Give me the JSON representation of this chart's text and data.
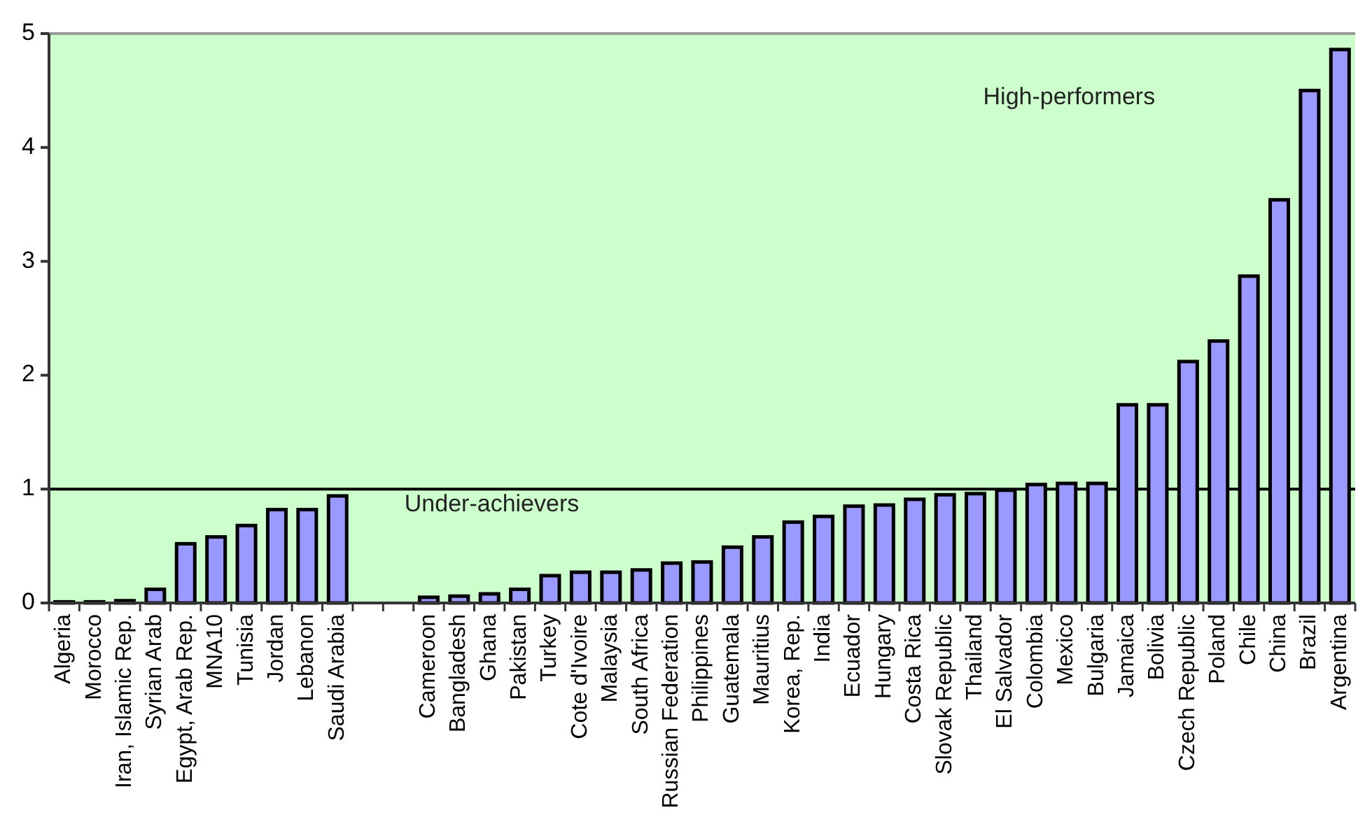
{
  "chart_data": {
    "type": "bar",
    "categories": [
      "Algeria",
      "Morocco",
      "Iran, Islamic Rep.",
      "Syrian Arab",
      "Egypt, Arab Rep.",
      "MNA10",
      "Tunisia",
      "Jordan",
      "Lebanon",
      "Saudi Arabia",
      null,
      null,
      "Cameroon",
      "Bangladesh",
      "Ghana",
      "Pakistan",
      "Turkey",
      "Cote d'Ivoire",
      "Malaysia",
      "South Africa",
      "Russian Federation",
      "Philippines",
      "Guatemala",
      "Mauritius",
      "Korea, Rep.",
      "India",
      "Ecuador",
      "Hungary",
      "Costa Rica",
      "Slovak Republic",
      "Thailand",
      "El Salvador",
      "Colombia",
      "Mexico",
      "Bulgaria",
      "Jamaica",
      "Bolivia",
      "Czech Republic",
      "Poland",
      "Chile",
      "China",
      "Brazil",
      "Argentina"
    ],
    "values": [
      0.01,
      0.01,
      0.02,
      0.12,
      0.52,
      0.58,
      0.68,
      0.82,
      0.82,
      0.94,
      null,
      null,
      0.05,
      0.06,
      0.08,
      0.12,
      0.24,
      0.27,
      0.27,
      0.29,
      0.35,
      0.36,
      0.49,
      0.58,
      0.71,
      0.76,
      0.85,
      0.86,
      0.91,
      0.95,
      0.96,
      0.99,
      1.04,
      1.05,
      1.05,
      1.74,
      1.74,
      2.12,
      2.3,
      2.87,
      3.54,
      4.5,
      4.86
    ],
    "color": "#9999ff",
    "ylim": [
      0,
      5
    ],
    "yticks": [
      0,
      1,
      2,
      3,
      4,
      5
    ],
    "grid": false,
    "ref_lines": [
      {
        "axis": "y",
        "value": 1,
        "color": "#000000"
      }
    ],
    "annotations": [
      "High-performers",
      "Under-achievers"
    ]
  }
}
